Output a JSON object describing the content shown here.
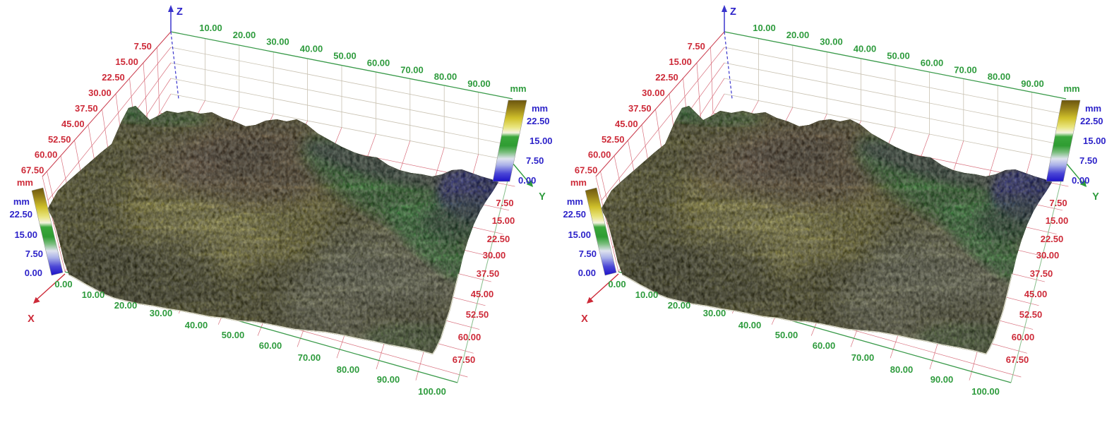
{
  "figure": {
    "title": "",
    "background": "#ffffff",
    "panels": [
      {
        "name": "surface-plot-left"
      },
      {
        "name": "surface-plot-right"
      }
    ]
  },
  "axes": {
    "x": {
      "label": "X",
      "unit": "mm",
      "color": "#cd2a38",
      "ticks": [
        "7.50",
        "15.00",
        "22.50",
        "30.00",
        "37.50",
        "45.00",
        "52.50",
        "60.00",
        "67.50"
      ]
    },
    "y": {
      "label": "Y",
      "unit": "mm",
      "color": "#2e9b3d",
      "ticks_top": [
        "10.00",
        "20.00",
        "30.00",
        "40.00",
        "50.00",
        "60.00",
        "70.00",
        "80.00",
        "90.00"
      ],
      "ticks_bottom": [
        "0.00",
        "10.00",
        "20.00",
        "30.00",
        "40.00",
        "50.00",
        "60.00",
        "70.00",
        "80.00",
        "90.00",
        "100.00"
      ]
    },
    "z": {
      "label": "Z",
      "unit": "mm",
      "color": "#2d23c9"
    }
  },
  "colorbar": {
    "unit": "mm",
    "ticks": [
      "22.50",
      "15.00",
      "7.50",
      "0.00"
    ],
    "label_color": "#2d23c9",
    "gradient_top_to_bottom": [
      "#6b560f",
      "#96801a",
      "#cfc02a",
      "#e9e57e",
      "#f4f3de",
      "#3aa73b",
      "#2f9c32",
      "#79bd7c",
      "#dfe3ee",
      "#a9b0e8",
      "#4b47d6",
      "#1d12c8"
    ]
  },
  "chart_data": [
    {
      "type": "surface",
      "title": "",
      "x_axis": {
        "label": "X",
        "unit": "mm",
        "min": 0,
        "max": 70,
        "tick_interval": 7.5,
        "ticks": [
          7.5,
          15,
          22.5,
          30,
          37.5,
          45,
          52.5,
          60,
          67.5
        ]
      },
      "y_axis": {
        "label": "Y",
        "unit": "mm",
        "min": 0,
        "max": 100,
        "tick_interval": 10,
        "ticks": [
          0,
          10,
          20,
          30,
          40,
          50,
          60,
          70,
          80,
          90,
          100
        ]
      },
      "z_axis": {
        "label": "Z",
        "unit": "mm",
        "colorbar_ticks": [
          22.5,
          15,
          7.5,
          0
        ]
      },
      "colormap": [
        {
          "z": ">22.5",
          "color": "#8a6d1d"
        },
        {
          "z": 22.5,
          "color": "#d8cc28"
        },
        {
          "z": 15,
          "color": "#2f9c32"
        },
        {
          "z": 7.5,
          "color": "#dfe3ee"
        },
        {
          "z": 0,
          "color": "#1d12c8"
        }
      ],
      "grid": true,
      "legend_position": "colorbars at left and right of box",
      "summary": "Textured 3D height map: broad yellow-brown ridge (high, ~20+ mm) over the center-left, olive speckled flanks, green band (~15 mm) sloping along the far side, blue low region (~0-7 mm) at the far corner near Y=100."
    },
    {
      "type": "surface",
      "title": "",
      "x_axis": {
        "label": "X",
        "unit": "mm",
        "min": 0,
        "max": 70,
        "tick_interval": 7.5,
        "ticks": [
          7.5,
          15,
          22.5,
          30,
          37.5,
          45,
          52.5,
          60,
          67.5
        ]
      },
      "y_axis": {
        "label": "Y",
        "unit": "mm",
        "min": 0,
        "max": 100,
        "tick_interval": 10,
        "ticks": [
          0,
          10,
          20,
          30,
          40,
          50,
          60,
          70,
          80,
          90,
          100
        ]
      },
      "z_axis": {
        "label": "Z",
        "unit": "mm",
        "colorbar_ticks": [
          22.5,
          15,
          7.5,
          0
        ]
      },
      "colormap": [
        {
          "z": ">22.5",
          "color": "#8a6d1d"
        },
        {
          "z": 22.5,
          "color": "#d8cc28"
        },
        {
          "z": 15,
          "color": "#2f9c32"
        },
        {
          "z": 7.5,
          "color": "#dfe3ee"
        },
        {
          "z": 0,
          "color": "#1d12c8"
        }
      ],
      "grid": true,
      "legend_position": "colorbars at left and right of box",
      "summary": "Identical duplicate of the first 3D surface view."
    }
  ]
}
